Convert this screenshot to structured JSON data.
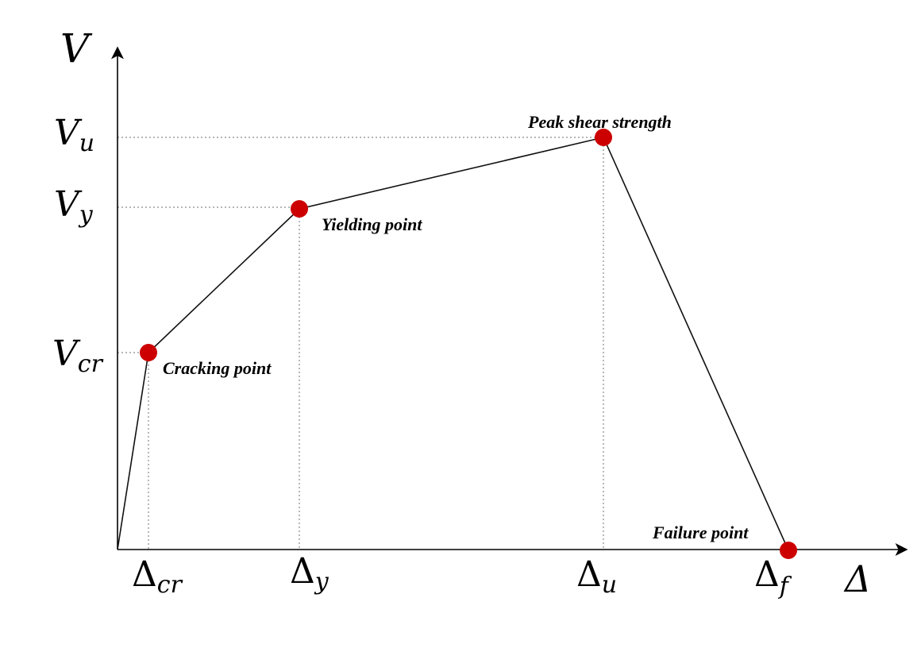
{
  "diagram": {
    "axes": {
      "y_symbol": "V",
      "x_symbol": "Δ"
    },
    "y_levels": [
      {
        "id": "vu",
        "main": "V",
        "sub": "u"
      },
      {
        "id": "vy",
        "main": "V",
        "sub": "y"
      },
      {
        "id": "vcr",
        "main": "V",
        "sub": "cr"
      }
    ],
    "x_levels": [
      {
        "id": "dcr",
        "main": "Δ",
        "sub": "cr"
      },
      {
        "id": "dy",
        "main": "Δ",
        "sub": "y"
      },
      {
        "id": "du",
        "main": "Δ",
        "sub": "u"
      },
      {
        "id": "df",
        "main": "Δ",
        "sub": "f"
      }
    ],
    "points": [
      {
        "id": "cracking",
        "label": "Cracking point"
      },
      {
        "id": "yielding",
        "label": "Yielding point"
      },
      {
        "id": "peak",
        "label": "Peak shear strength"
      },
      {
        "id": "failure",
        "label": "Failure point"
      }
    ],
    "colors": {
      "point": "#cc0000",
      "curve": "#111111",
      "guide": "#8a8a8a"
    }
  }
}
